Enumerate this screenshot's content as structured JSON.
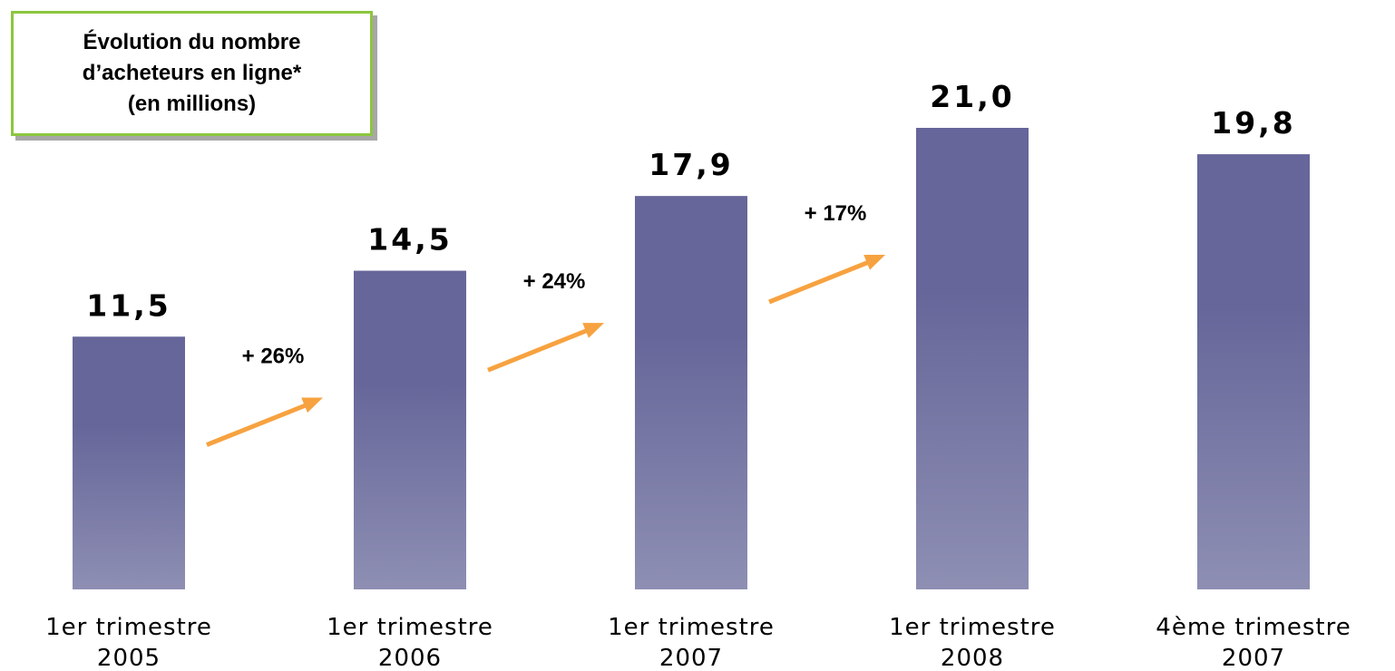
{
  "title": {
    "lines": [
      "Évolution du nombre",
      "d’acheteurs en ligne*",
      "(en millions)"
    ]
  },
  "colors": {
    "bar_top": "#66669a",
    "bar_bottom": "#8e8fb3",
    "arrow": "#f7a240",
    "title_border": "#8cc63f",
    "title_shadow": "#a7a7a7"
  },
  "chart_data": {
    "type": "bar",
    "categories": [
      [
        "1er trimestre",
        "2005"
      ],
      [
        "1er trimestre",
        "2006"
      ],
      [
        "1er trimestre",
        "2007"
      ],
      [
        "1er trimestre",
        "2008"
      ],
      [
        "4ème trimestre",
        "2007"
      ]
    ],
    "values": [
      11.5,
      14.5,
      17.9,
      21.0,
      19.8
    ],
    "value_labels": [
      "11,5",
      "14,5",
      "17,9",
      "21,0",
      "19,8"
    ],
    "growth": [
      {
        "from": 0,
        "to": 1,
        "label": "+ 26%"
      },
      {
        "from": 1,
        "to": 2,
        "label": "+ 24%"
      },
      {
        "from": 2,
        "to": 3,
        "label": "+ 17%"
      }
    ],
    "ylim": [
      0,
      21.0
    ],
    "grid": false,
    "legend": "none"
  }
}
